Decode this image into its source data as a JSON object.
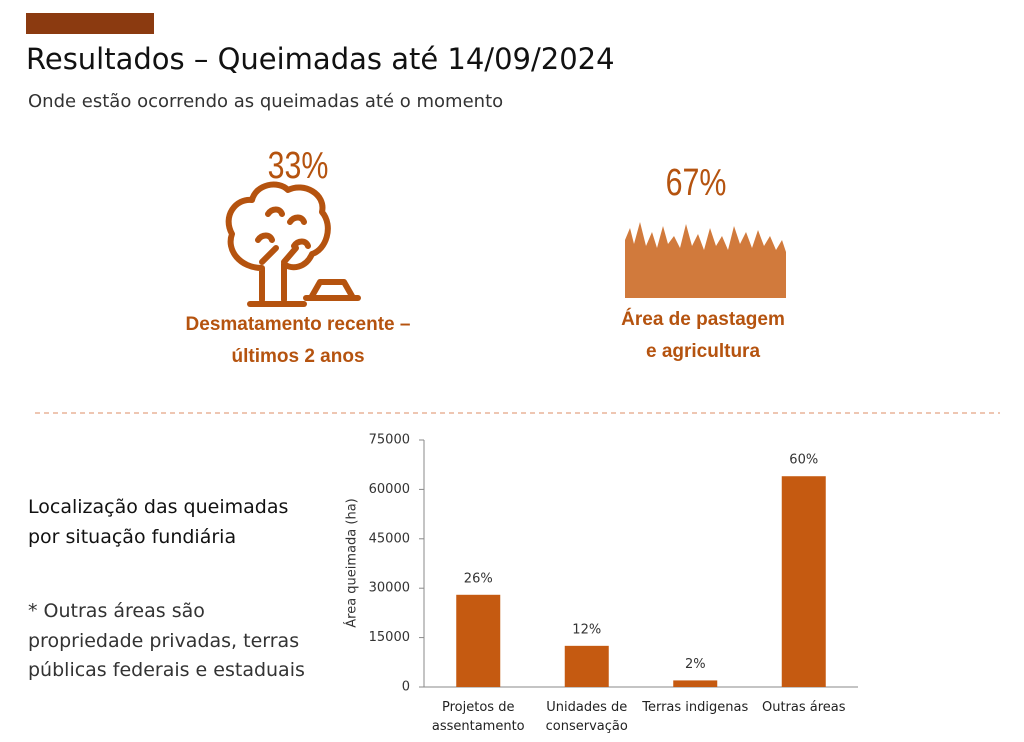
{
  "title": "Resultados – Queimadas até 14/09/2024",
  "subtitle": "Onde estão ocorrendo as queimadas até o momento",
  "stats": [
    {
      "value": "33%",
      "label_lines": [
        "Desmatamento recente –",
        "últimos 2 anos"
      ]
    },
    {
      "value": "67%",
      "label_lines": [
        "Área de pastagem",
        "e agricultura"
      ]
    }
  ],
  "section_title_lines": [
    "Localização das queimadas",
    "por situação fundiária"
  ],
  "footnote_lines": [
    "* Outras áreas são",
    "propriedade privadas, terras",
    "públicas federais e estaduais"
  ],
  "chart_data": {
    "type": "bar",
    "y_label": "Área queimada (ha)",
    "categories": [
      "Projetos de assentamento",
      "Unidades de conservação",
      "Terras indigenas",
      "Outras áreas"
    ],
    "values": [
      28000,
      12500,
      2000,
      64000
    ],
    "share_labels": [
      "26%",
      "12%",
      "2%",
      "60%"
    ],
    "color": "#c55a11",
    "ylim": [
      0,
      75000
    ],
    "yticks": [
      0,
      15000,
      30000,
      45000,
      60000,
      75000
    ],
    "grid": false
  }
}
